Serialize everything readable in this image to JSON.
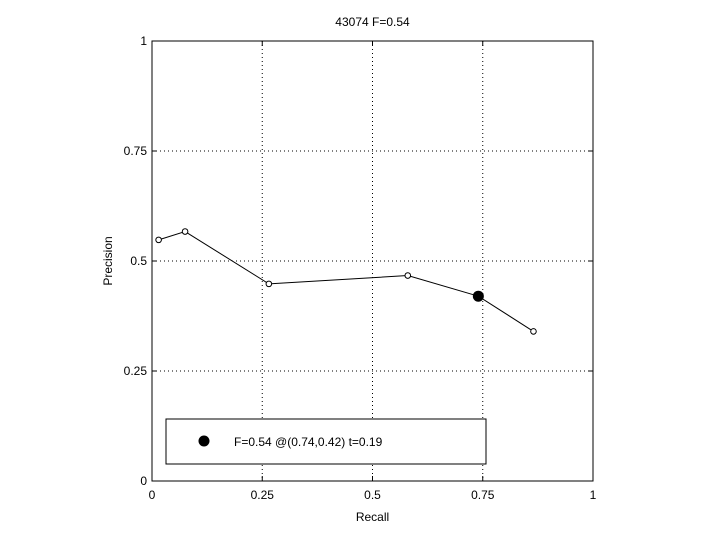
{
  "chart_data": {
    "type": "line",
    "title": "43074 F=0.54",
    "xlabel": "Recall",
    "ylabel": "Precision",
    "xlim": [
      0,
      1
    ],
    "ylim": [
      0,
      1
    ],
    "grid": true,
    "x_ticks": [
      0,
      0.25,
      0.5,
      0.75,
      1
    ],
    "x_tick_labels": [
      "0",
      "0.25",
      "0.5",
      "0.75",
      "1"
    ],
    "y_ticks": [
      0,
      0.25,
      0.5,
      0.75,
      1
    ],
    "y_tick_labels": [
      "0",
      "0.25",
      "0.5",
      "0.75",
      "1"
    ],
    "series": [
      {
        "x": [
          0.015,
          0.075,
          0.265,
          0.58,
          0.74,
          0.865
        ],
        "y": [
          0.548,
          0.567,
          0.448,
          0.467,
          0.42,
          0.34
        ],
        "marker": "open-circle",
        "color": "#000000"
      }
    ],
    "highlight_point": {
      "x": 0.74,
      "y": 0.42,
      "marker": "filled-circle",
      "color": "#000000"
    },
    "legend": {
      "placement": "bottom-left",
      "label": "F=0.54 @(0.74,0.42) t=0.19"
    }
  }
}
